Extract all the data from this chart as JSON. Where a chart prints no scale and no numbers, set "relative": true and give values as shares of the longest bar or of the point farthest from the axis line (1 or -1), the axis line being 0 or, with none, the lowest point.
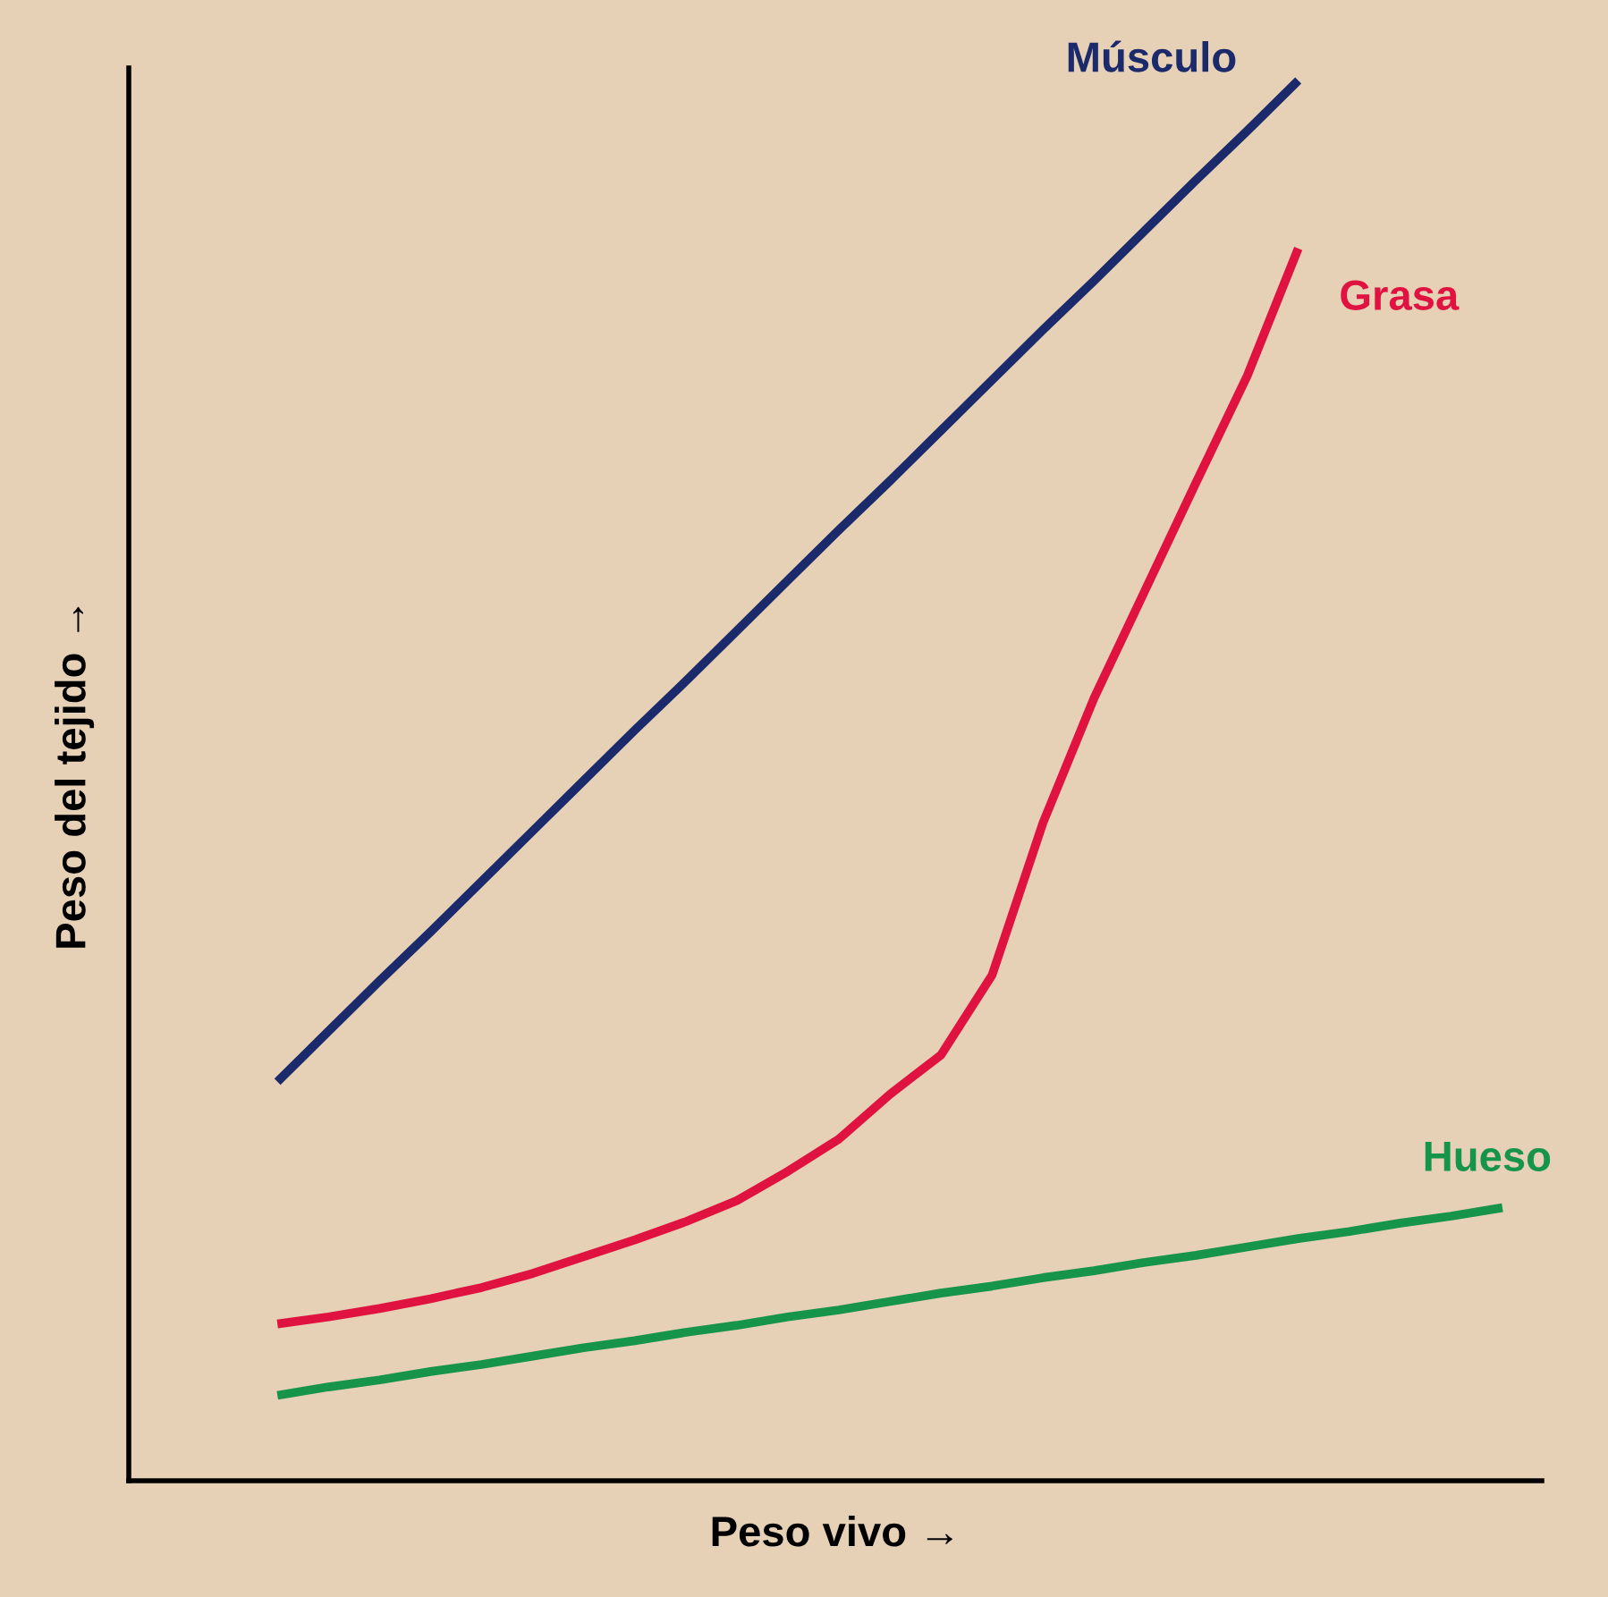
{
  "chart_data": {
    "type": "line",
    "relative": true,
    "xlabel": "Peso vivo →",
    "ylabel": "Peso del tejido →",
    "legend": false,
    "marker": "none",
    "line_style": "solid",
    "categories": [
      null,
      null,
      null,
      null,
      null,
      null,
      null,
      null,
      null,
      null,
      null,
      null,
      null,
      null,
      null,
      null,
      null,
      null,
      null,
      null,
      null,
      null,
      null,
      null,
      null
    ],
    "series": [
      {
        "name": "Músculo",
        "color": "#1b2a6b",
        "values": [
          0.285,
          0.321,
          0.357,
          0.392,
          0.428,
          0.464,
          0.5,
          0.536,
          0.571,
          0.607,
          0.643,
          0.679,
          0.714,
          0.75,
          0.786,
          0.822,
          0.857,
          0.893,
          0.929,
          0.964,
          1.0,
          null,
          null,
          null,
          null
        ]
      },
      {
        "name": "Grasa",
        "color": "#e0123f",
        "values": [
          0.112,
          0.117,
          0.123,
          0.13,
          0.138,
          0.148,
          0.16,
          0.172,
          0.185,
          0.2,
          0.221,
          0.244,
          0.276,
          0.304,
          0.361,
          0.47,
          0.559,
          0.636,
          0.713,
          0.789,
          0.88,
          null,
          null,
          null,
          null
        ]
      },
      {
        "name": "Hueso",
        "color": "#16944a",
        "values": [
          0.061,
          0.067,
          0.072,
          0.078,
          0.083,
          0.089,
          0.095,
          0.1,
          0.106,
          0.111,
          0.117,
          0.122,
          0.128,
          0.134,
          0.139,
          0.145,
          0.15,
          0.156,
          0.161,
          0.167,
          0.173,
          0.178,
          0.184,
          0.189,
          0.195
        ]
      }
    ]
  }
}
